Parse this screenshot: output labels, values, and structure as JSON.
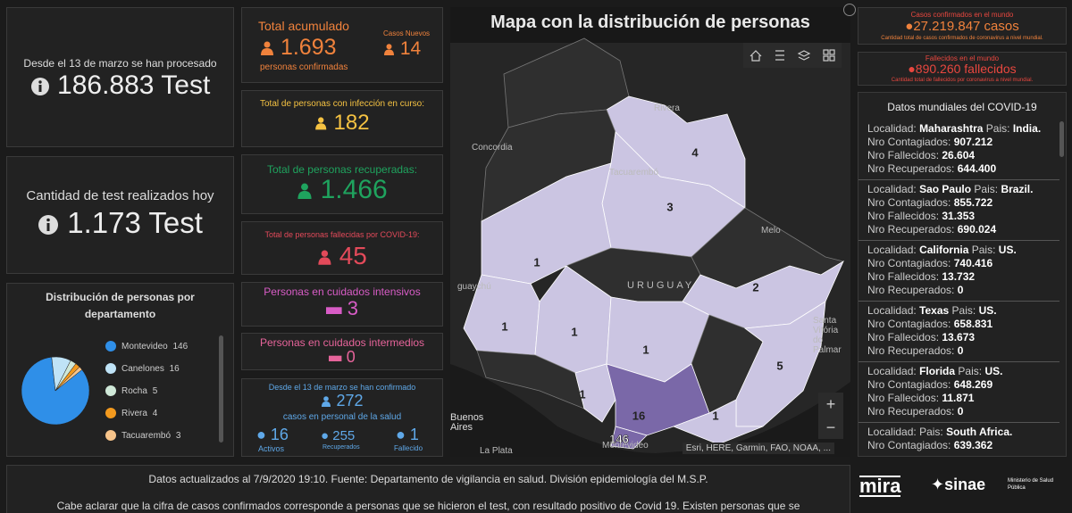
{
  "tests": {
    "processed_label": "Desde el 13 de marzo se han procesado",
    "processed": "186.883 Test",
    "today_label": "Cantidad de test realizados hoy",
    "today": "1.173 Test"
  },
  "distribution": {
    "title": "Distribución de personas por departamento",
    "items": [
      {
        "name": "Montevideo",
        "value": 146,
        "color": "#2f8fe8"
      },
      {
        "name": "Canelones",
        "value": 16,
        "color": "#bfe3f7"
      },
      {
        "name": "Rocha",
        "value": 5,
        "color": "#cfe8d8"
      },
      {
        "name": "Rivera",
        "value": 4,
        "color": "#f39a1e"
      },
      {
        "name": "Tacuarembó",
        "value": 3,
        "color": "#f7c48a"
      }
    ]
  },
  "cards": {
    "total": {
      "title": "Total acumulado",
      "value": "1.693",
      "caption": "personas confirmadas",
      "new_title": "Casos Nuevos",
      "new_value": "14"
    },
    "active": {
      "title": "Total de personas con infección en curso:",
      "value": "182"
    },
    "recovered": {
      "title": "Total de personas recuperadas:",
      "value": "1.466"
    },
    "deceased": {
      "title": "Total de personas fallecidas por COVID-19:",
      "value": "45"
    },
    "icu": {
      "title": "Personas en cuidados intensivos",
      "value": "3"
    },
    "intermediate": {
      "title": "Personas en cuidados intermedios",
      "value": "0"
    },
    "health": {
      "title": "Desde el 13 de marzo se han confirmado",
      "value": "272",
      "caption": "casos en personal de la salud",
      "active": "16",
      "active_label": "Activos",
      "recovered": "255",
      "recovered_label": "Recuperados",
      "deceased": "1",
      "deceased_label": "Fallecido"
    }
  },
  "map": {
    "title": "Mapa con la distribución de personas",
    "places": [
      "Rivera",
      "Tacuarembó",
      "Concordia",
      "Melo",
      "URUGUAY",
      "guaychú",
      "Santa Vitória do Palmar",
      "Buenos Aires",
      "La Plata",
      "Montevideo"
    ],
    "departments": [
      4,
      3,
      1,
      2,
      1,
      1,
      1,
      1,
      5,
      16,
      1,
      146
    ],
    "attribution": "Esri, HERE, Garmin, FAO, NOAA, ..."
  },
  "world": {
    "confirmed": {
      "title": "Casos confirmados en el mundo",
      "value": "27.219.847 casos",
      "caption": "Cantidad total de casos confirmados de coronavirus a nivel mundial."
    },
    "deaths": {
      "title": "Fallecidos en el mundo",
      "value": "890.260 fallecidos",
      "caption": "Cantidad total de fallecidos por coronavirus a nivel mundial."
    }
  },
  "world_list": {
    "title": "Datos mundiales del COVID-19",
    "labels": {
      "locality": "Localidad:",
      "country": "Pais:",
      "cases": "Nro Contagiados:",
      "deaths": "Nro Fallecidos:",
      "recovered": "Nro Recuperados:"
    },
    "entries": [
      {
        "locality": "Maharashtra",
        "country": "India.",
        "cases": "907.212",
        "deaths": "26.604",
        "recovered": "644.400"
      },
      {
        "locality": "Sao Paulo",
        "country": "Brazil.",
        "cases": "855.722",
        "deaths": "31.353",
        "recovered": "690.024"
      },
      {
        "locality": "California",
        "country": "US.",
        "cases": "740.416",
        "deaths": "13.732",
        "recovered": "0"
      },
      {
        "locality": "Texas",
        "country": "US.",
        "cases": "658.831",
        "deaths": "13.673",
        "recovered": "0"
      },
      {
        "locality": "Florida",
        "country": "US.",
        "cases": "648.269",
        "deaths": "11.871",
        "recovered": "0"
      },
      {
        "country": "South Africa.",
        "cases": "639.362"
      }
    ]
  },
  "footer": {
    "updated": "Datos actualizados al 7/9/2020 19:10. Fuente: Departamento de vigilancia en salud. División epidemiología del M.S.P.",
    "note": "Cabe aclarar que la cifra de casos confirmados corresponde a personas que se hicieron el test, con resultado positivo de Covid 19. Existen personas que se"
  },
  "logos": {
    "mira": "mira",
    "sinae": "sinae",
    "ministry": "Ministerio de Salud Pública"
  }
}
